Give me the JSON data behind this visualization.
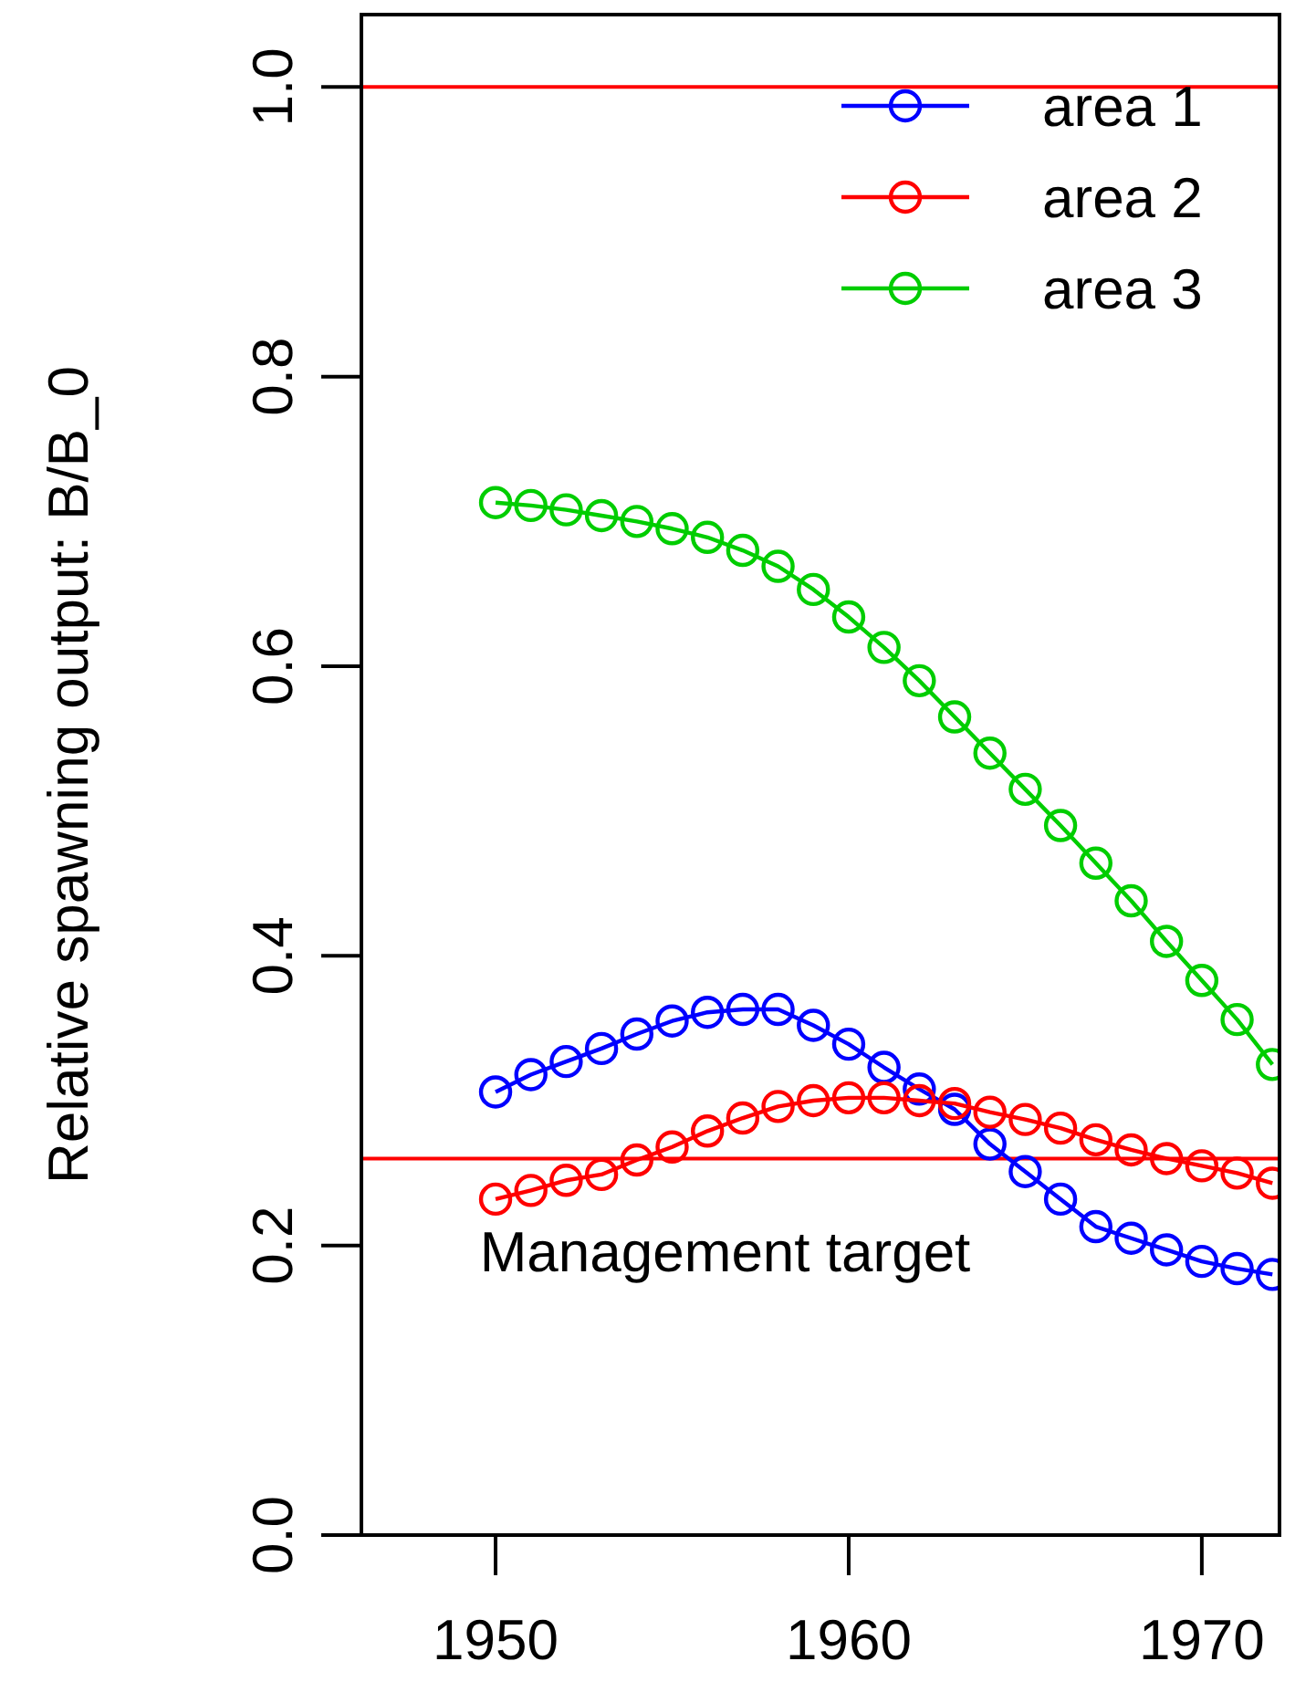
{
  "chart_data": {
    "type": "line",
    "ylabel": "Relative spawning output: B/B_0",
    "x": [
      1950,
      1951,
      1952,
      1953,
      1954,
      1955,
      1956,
      1957,
      1958,
      1959,
      1960,
      1961,
      1962,
      1963,
      1964,
      1965,
      1966,
      1967,
      1968,
      1969,
      1970,
      1971,
      1972
    ],
    "series": [
      {
        "name": "area 1",
        "color": "#0000ff",
        "values": [
          0.306,
          0.318,
          0.327,
          0.336,
          0.346,
          0.355,
          0.361,
          0.363,
          0.363,
          0.352,
          0.339,
          0.323,
          0.308,
          0.294,
          0.27,
          0.251,
          0.232,
          0.213,
          0.205,
          0.197,
          0.189,
          0.184,
          0.18
        ]
      },
      {
        "name": "area 2",
        "color": "#ff0000",
        "values": [
          0.232,
          0.238,
          0.245,
          0.249,
          0.259,
          0.268,
          0.279,
          0.288,
          0.296,
          0.3,
          0.302,
          0.302,
          0.3,
          0.298,
          0.292,
          0.287,
          0.281,
          0.273,
          0.266,
          0.26,
          0.255,
          0.25,
          0.243
        ]
      },
      {
        "name": "area 3",
        "color": "#00cd00",
        "values": [
          0.713,
          0.711,
          0.708,
          0.704,
          0.7,
          0.695,
          0.689,
          0.68,
          0.669,
          0.653,
          0.634,
          0.613,
          0.59,
          0.565,
          0.54,
          0.515,
          0.49,
          0.464,
          0.438,
          0.41,
          0.383,
          0.356,
          0.325
        ]
      }
    ],
    "xlim": [
      1946.2,
      1972.2
    ],
    "xticks": [
      1950,
      1960,
      1970
    ],
    "ylim": [
      0,
      1.05
    ],
    "yticks": [
      {
        "value": 0,
        "label": "0.0"
      },
      {
        "value": 0.2,
        "label": "0.2"
      },
      {
        "value": 0.4,
        "label": "0.4"
      },
      {
        "value": 0.6,
        "label": "0.6"
      },
      {
        "value": 0.8,
        "label": "0.8"
      },
      {
        "value": 1,
        "label": "1.0"
      }
    ],
    "ref_lines": [
      {
        "axis": "y",
        "value": 1,
        "color": "#ff0000"
      },
      {
        "axis": "y",
        "value": 0.26,
        "label": "Management target",
        "color": "#ff0000"
      }
    ],
    "marker": "circle",
    "line_style": "solid",
    "legend": "top right",
    "grid": false
  }
}
